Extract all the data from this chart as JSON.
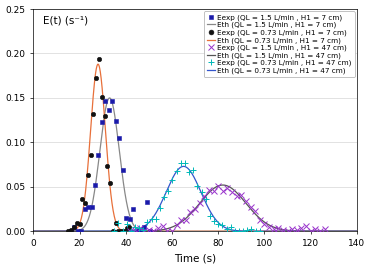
{
  "title": "",
  "xlabel": "Time (s)",
  "xlim": [
    0,
    140
  ],
  "ylim": [
    0,
    0.25
  ],
  "yticks": [
    0,
    0.05,
    0.1,
    0.15,
    0.2,
    0.25
  ],
  "xticks": [
    0,
    20,
    40,
    60,
    80,
    100,
    120,
    140
  ],
  "curves": [
    {
      "label_exp": "Eexp (QL = 1.5 L/min , H1 = 7 cm)",
      "label_th": "Eth (QL = 1.5 L/min , H1 = 7 cm)",
      "color_exp": "#1a1aaa",
      "color_th": "#888888",
      "marker": "s",
      "mu": 33,
      "sigma": 4.2,
      "peak": 0.15,
      "scatter_step": 1.5,
      "scatter_noise": 0.01
    },
    {
      "label_exp": "Eexp (QL = 0.73 L/min , H1 = 7 cm)",
      "label_th": "Eth (QL = 0.73 L/min , H1 = 7 cm)",
      "color_exp": "#111111",
      "color_th": "#e8703a",
      "marker": "o",
      "mu": 28,
      "sigma": 3.2,
      "peak": 0.188,
      "scatter_step": 1.2,
      "scatter_noise": 0.012
    },
    {
      "label_exp": "Eexp (QL = 1.5 L/min , H1 = 47 cm)",
      "label_th": "Eth (QL = 1.5 L/min , H1 = 47 cm)",
      "color_exp": "#9933cc",
      "color_th": "#555555",
      "marker": "x",
      "mu": 82,
      "sigma": 10,
      "peak": 0.052,
      "scatter_step": 2.0,
      "scatter_noise": 0.003
    },
    {
      "label_exp": "Eexp (QL = 0.73 L/min , H1 = 47 cm)",
      "label_th": "Eth (QL = 0.73 L/min , H1 = 47 cm)",
      "color_exp": "#00b8b8",
      "color_th": "#3355cc",
      "marker": "+",
      "mu": 65,
      "sigma": 7.5,
      "peak": 0.073,
      "scatter_step": 1.8,
      "scatter_noise": 0.004
    }
  ],
  "ylabel_text": "E(t) (s⁻¹)",
  "legend_fontsize": 5.2,
  "axis_label_fontsize": 7.5,
  "tick_fontsize": 6.5
}
